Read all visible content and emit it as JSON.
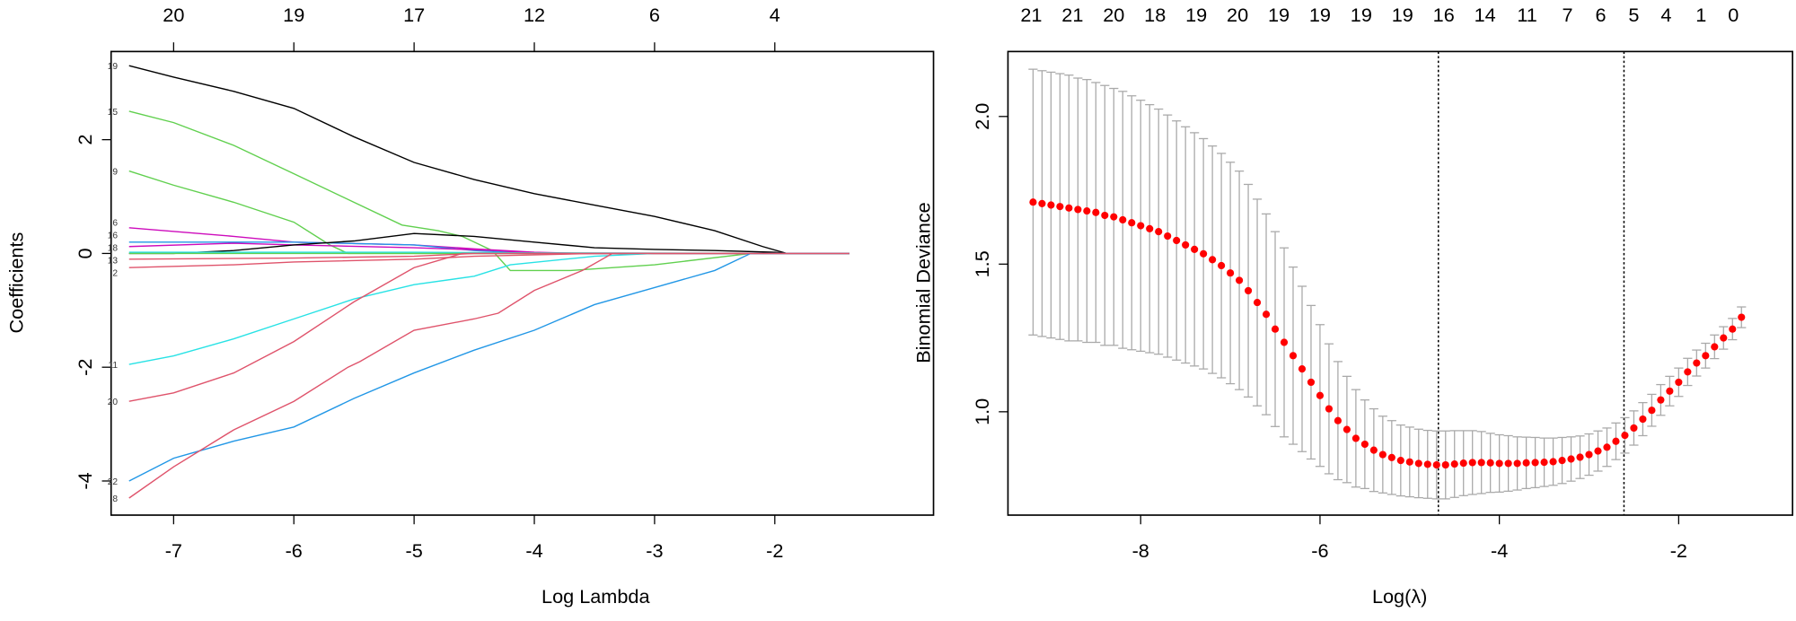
{
  "chart_data": [
    {
      "type": "line",
      "xlabel": "Log Lambda",
      "ylabel": "Coefficients",
      "xlim": [
        -7.52,
        -0.68
      ],
      "ylim": [
        -4.6,
        3.55
      ],
      "xticks": [
        "-7",
        "-6",
        "-5",
        "-4",
        "-3",
        "-2"
      ],
      "xtick_values": [
        -7,
        -6,
        -5,
        -4,
        -3,
        -2
      ],
      "yticks": [
        "-4",
        "-2",
        "0",
        "2"
      ],
      "ytick_values": [
        -4,
        -2,
        0,
        2
      ],
      "top_axis": {
        "labels": [
          "20",
          "19",
          "17",
          "12",
          "6",
          "4"
        ],
        "at": [
          -7,
          -6,
          -5,
          -4,
          -3,
          -2
        ]
      },
      "grid": false,
      "series": [
        {
          "label": "19",
          "color": "#000000",
          "points": [
            [
              -7.37,
              3.3
            ],
            [
              -7,
              3.1
            ],
            [
              -6.5,
              2.85
            ],
            [
              -6,
              2.55
            ],
            [
              -5.5,
              2.05
            ],
            [
              -5,
              1.6
            ],
            [
              -4.5,
              1.3
            ],
            [
              -4,
              1.05
            ],
            [
              -3.5,
              0.85
            ],
            [
              -3,
              0.65
            ],
            [
              -2.5,
              0.4
            ],
            [
              -2.1,
              0.12
            ],
            [
              -1.9,
              0
            ],
            [
              -1.38,
              0
            ]
          ]
        },
        {
          "label": "15",
          "color": "#61D04F",
          "points": [
            [
              -7.37,
              2.5
            ],
            [
              -7,
              2.3
            ],
            [
              -6.5,
              1.9
            ],
            [
              -6,
              1.4
            ],
            [
              -5.5,
              0.9
            ],
            [
              -5.1,
              0.5
            ],
            [
              -4.8,
              0.4
            ],
            [
              -4.6,
              0.3
            ],
            [
              -4.35,
              0.05
            ],
            [
              -4.2,
              -0.3
            ],
            [
              -3.7,
              -0.3
            ],
            [
              -3,
              -0.2
            ],
            [
              -2.2,
              0
            ],
            [
              -1.38,
              0
            ]
          ]
        },
        {
          "label": "9",
          "color": "#61D04F",
          "points": [
            [
              -7.37,
              1.45
            ],
            [
              -7,
              1.2
            ],
            [
              -6.5,
              0.9
            ],
            [
              -6,
              0.55
            ],
            [
              -5.7,
              0.15
            ],
            [
              -5.55,
              0
            ],
            [
              -1.38,
              0
            ]
          ]
        },
        {
          "label": "6",
          "color": "#CD0BBC",
          "points": [
            [
              -7.37,
              0.45
            ],
            [
              -6.5,
              0.3
            ],
            [
              -6,
              0.2
            ],
            [
              -5,
              0.15
            ],
            [
              -4.5,
              0.08
            ],
            [
              -4,
              0.02
            ],
            [
              -3.6,
              0
            ],
            [
              -1.38,
              0
            ]
          ]
        },
        {
          "label": "16",
          "color": "#2297E6",
          "points": [
            [
              -7.37,
              0.2
            ],
            [
              -6,
              0.2
            ],
            [
              -5,
              0.15
            ],
            [
              -4.5,
              0.05
            ],
            [
              -4,
              0
            ],
            [
              -1.38,
              0
            ]
          ]
        },
        {
          "label": "18",
          "color": "#CD0BBC",
          "points": [
            [
              -7.37,
              0.12
            ],
            [
              -6.5,
              0.18
            ],
            [
              -6,
              0.15
            ],
            [
              -5,
              0.1
            ],
            [
              -4.3,
              0.05
            ],
            [
              -4,
              0
            ],
            [
              -1.38,
              0
            ]
          ]
        },
        {
          "label": "",
          "color": "#000000",
          "points": [
            [
              -7.37,
              0
            ],
            [
              -7,
              0
            ],
            [
              -6.5,
              0.05
            ],
            [
              -6,
              0.15
            ],
            [
              -5.5,
              0.22
            ],
            [
              -5,
              0.35
            ],
            [
              -4.5,
              0.3
            ],
            [
              -4,
              0.2
            ],
            [
              -3.5,
              0.1
            ],
            [
              -3,
              0.07
            ],
            [
              -2.5,
              0.05
            ],
            [
              -2,
              0.02
            ],
            [
              -1.9,
              0
            ],
            [
              -1.38,
              0
            ]
          ]
        },
        {
          "label": "13",
          "color": "#28E2E5",
          "points": [
            [
              -7.37,
              0.02
            ],
            [
              -5,
              0.02
            ],
            [
              -4,
              0.01
            ],
            [
              -1.38,
              0
            ]
          ]
        },
        {
          "label": "",
          "color": "#61D04F",
          "points": [
            [
              -7.37,
              0
            ],
            [
              -1.38,
              0
            ]
          ]
        },
        {
          "label": "",
          "color": "#DF536B",
          "points": [
            [
              -7.37,
              -0.1
            ],
            [
              -6,
              -0.08
            ],
            [
              -5,
              -0.05
            ],
            [
              -4.5,
              0
            ],
            [
              -1.38,
              0
            ]
          ]
        },
        {
          "label": "2",
          "color": "#DF536B",
          "points": [
            [
              -7.37,
              -0.25
            ],
            [
              -6.5,
              -0.2
            ],
            [
              -6,
              -0.15
            ],
            [
              -5,
              -0.1
            ],
            [
              -4.5,
              -0.05
            ],
            [
              -3.5,
              0
            ],
            [
              -1.38,
              0
            ]
          ]
        },
        {
          "label": "11",
          "color": "#28E2E5",
          "points": [
            [
              -7.37,
              -1.95
            ],
            [
              -7,
              -1.8
            ],
            [
              -6.5,
              -1.5
            ],
            [
              -6,
              -1.15
            ],
            [
              -5.5,
              -0.8
            ],
            [
              -5,
              -0.55
            ],
            [
              -4.5,
              -0.4
            ],
            [
              -4.2,
              -0.2
            ],
            [
              -3.5,
              -0.05
            ],
            [
              -3,
              0
            ],
            [
              -1.38,
              0
            ]
          ]
        },
        {
          "label": "20",
          "color": "#DF536B",
          "points": [
            [
              -7.37,
              -2.6
            ],
            [
              -7,
              -2.45
            ],
            [
              -6.5,
              -2.1
            ],
            [
              -6,
              -1.55
            ],
            [
              -5.5,
              -0.85
            ],
            [
              -5,
              -0.25
            ],
            [
              -4.6,
              0
            ],
            [
              -1.38,
              0
            ]
          ]
        },
        {
          "label": "22",
          "color": "#2297E6",
          "points": [
            [
              -7.37,
              -4.0
            ],
            [
              -7,
              -3.6
            ],
            [
              -6.5,
              -3.3
            ],
            [
              -6,
              -3.05
            ],
            [
              -5.5,
              -2.55
            ],
            [
              -5,
              -2.1
            ],
            [
              -4.5,
              -1.7
            ],
            [
              -4,
              -1.35
            ],
            [
              -3.5,
              -0.9
            ],
            [
              -3,
              -0.6
            ],
            [
              -2.5,
              -0.3
            ],
            [
              -2.2,
              0
            ],
            [
              -1.38,
              0
            ]
          ]
        },
        {
          "label": "8",
          "color": "#DF536B",
          "points": [
            [
              -7.37,
              -4.3
            ],
            [
              -7,
              -3.75
            ],
            [
              -6.5,
              -3.1
            ],
            [
              -6,
              -2.6
            ],
            [
              -5.55,
              -2.0
            ],
            [
              -5.45,
              -1.9
            ],
            [
              -5,
              -1.35
            ],
            [
              -4.5,
              -1.15
            ],
            [
              -4.3,
              -1.05
            ],
            [
              -4,
              -0.65
            ],
            [
              -3.6,
              -0.3
            ],
            [
              -3.35,
              0
            ],
            [
              -1.38,
              0
            ]
          ]
        }
      ]
    },
    {
      "type": "scatter",
      "xlabel": "Log(λ)",
      "ylabel": "Binomial Deviance",
      "xlim": [
        -9.48,
        -0.73
      ],
      "ylim": [
        0.65,
        2.22
      ],
      "xticks": [
        "-8",
        "-6",
        "-4",
        "-2"
      ],
      "xtick_values": [
        -8,
        -6,
        -4,
        -2
      ],
      "yticks": [
        "1.0",
        "1.5",
        "2.0"
      ],
      "ytick_values": [
        1.0,
        1.5,
        2.0
      ],
      "grid": false,
      "point_color": "#FF0000",
      "errorbar_color": "#A9A9A9",
      "vlines": [
        -4.68,
        -2.61
      ],
      "top_axis": {
        "labels": [
          "21",
          "21",
          "20",
          "18",
          "19",
          "20",
          "19",
          "19",
          "19",
          "19",
          "16",
          "14",
          "11",
          "7",
          "6",
          "5",
          "4",
          "1",
          "0"
        ],
        "at": [
          -9.22,
          -8.76,
          -8.3,
          -7.84,
          -7.38,
          -6.92,
          -6.46,
          -6.0,
          -5.54,
          -5.08,
          -4.62,
          -4.16,
          -3.69,
          -3.24,
          -2.87,
          -2.5,
          -2.14,
          -1.75,
          -1.39
        ]
      },
      "log_lambda": [
        -9.2,
        -9.1,
        -9.0,
        -8.9,
        -8.8,
        -8.7,
        -8.6,
        -8.5,
        -8.4,
        -8.3,
        -8.2,
        -8.1,
        -8.0,
        -7.9,
        -7.8,
        -7.7,
        -7.6,
        -7.5,
        -7.4,
        -7.3,
        -7.2,
        -7.1,
        -7.0,
        -6.9,
        -6.8,
        -6.7,
        -6.6,
        -6.5,
        -6.4,
        -6.3,
        -6.2,
        -6.1,
        -6.0,
        -5.9,
        -5.8,
        -5.7,
        -5.6,
        -5.5,
        -5.4,
        -5.3,
        -5.2,
        -5.1,
        -5.0,
        -4.9,
        -4.8,
        -4.7,
        -4.6,
        -4.5,
        -4.4,
        -4.3,
        -4.2,
        -4.1,
        -4.0,
        -3.9,
        -3.8,
        -3.7,
        -3.6,
        -3.5,
        -3.4,
        -3.3,
        -3.2,
        -3.1,
        -3.0,
        -2.9,
        -2.8,
        -2.7,
        -2.6,
        -2.5,
        -2.4,
        -2.3,
        -2.2,
        -2.1,
        -2.0,
        -1.9,
        -1.8,
        -1.7,
        -1.6,
        -1.5,
        -1.4,
        -1.3
      ],
      "deviance": [
        1.71,
        1.705,
        1.7,
        1.695,
        1.69,
        1.685,
        1.68,
        1.675,
        1.665,
        1.66,
        1.65,
        1.64,
        1.63,
        1.62,
        1.61,
        1.595,
        1.58,
        1.565,
        1.55,
        1.535,
        1.515,
        1.495,
        1.47,
        1.445,
        1.41,
        1.37,
        1.33,
        1.28,
        1.235,
        1.19,
        1.145,
        1.1,
        1.055,
        1.01,
        0.97,
        0.94,
        0.91,
        0.89,
        0.87,
        0.855,
        0.845,
        0.835,
        0.83,
        0.825,
        0.822,
        0.82,
        0.82,
        0.823,
        0.826,
        0.828,
        0.828,
        0.827,
        0.825,
        0.825,
        0.825,
        0.827,
        0.828,
        0.829,
        0.831,
        0.835,
        0.84,
        0.846,
        0.855,
        0.867,
        0.88,
        0.9,
        0.92,
        0.945,
        0.975,
        1.005,
        1.04,
        1.07,
        1.1,
        1.135,
        1.165,
        1.19,
        1.22,
        1.25,
        1.28,
        1.32
      ],
      "se": [
        0.45,
        0.45,
        0.45,
        0.45,
        0.45,
        0.445,
        0.445,
        0.44,
        0.44,
        0.435,
        0.435,
        0.43,
        0.425,
        0.42,
        0.415,
        0.41,
        0.405,
        0.4,
        0.395,
        0.39,
        0.385,
        0.38,
        0.375,
        0.37,
        0.36,
        0.35,
        0.34,
        0.33,
        0.32,
        0.3,
        0.28,
        0.26,
        0.24,
        0.22,
        0.2,
        0.18,
        0.165,
        0.15,
        0.14,
        0.13,
        0.125,
        0.12,
        0.118,
        0.116,
        0.115,
        0.115,
        0.115,
        0.113,
        0.11,
        0.108,
        0.105,
        0.1,
        0.097,
        0.094,
        0.09,
        0.087,
        0.085,
        0.082,
        0.08,
        0.078,
        0.075,
        0.072,
        0.07,
        0.068,
        0.065,
        0.062,
        0.06,
        0.058,
        0.056,
        0.054,
        0.052,
        0.05,
        0.048,
        0.046,
        0.044,
        0.042,
        0.04,
        0.038,
        0.036,
        0.035
      ]
    }
  ]
}
